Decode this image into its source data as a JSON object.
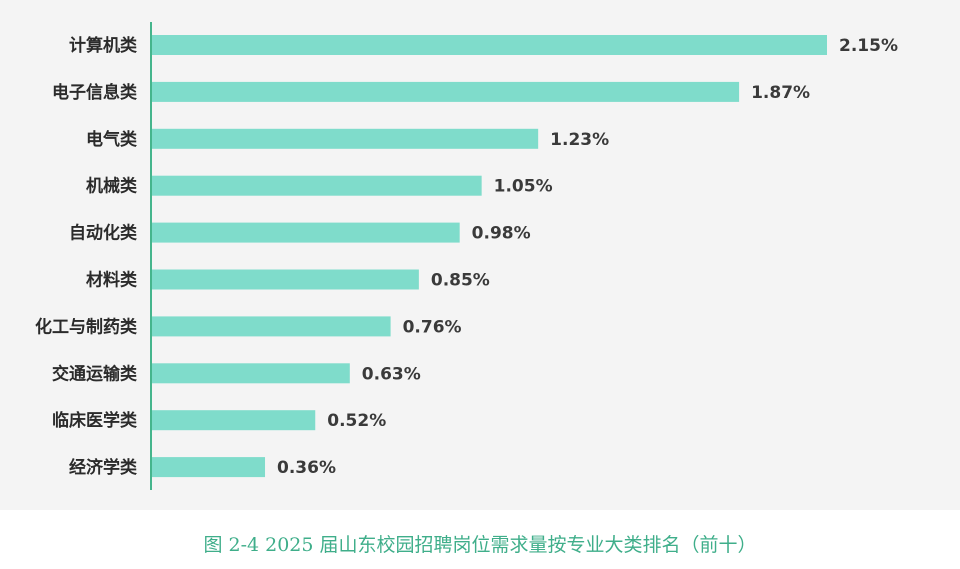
{
  "caption": "图 2-4 2025 届山东校园招聘岗位需求量按专业大类排名（前十）",
  "colors": {
    "bar": "#7fdccb",
    "axis": "#45b58c",
    "panel": "#f4f4f4",
    "caption": "#3fae8a"
  },
  "chart_data": {
    "type": "bar",
    "orientation": "horizontal",
    "categories": [
      "计算机类",
      "电子信息类",
      "电气类",
      "机械类",
      "自动化类",
      "材料类",
      "化工与制药类",
      "交通运输类",
      "临床医学类",
      "经济学类"
    ],
    "values": [
      2.15,
      1.87,
      1.23,
      1.05,
      0.98,
      0.85,
      0.76,
      0.63,
      0.52,
      0.36
    ],
    "value_labels": [
      "2.15%",
      "1.87%",
      "1.23%",
      "1.05%",
      "0.98%",
      "0.85%",
      "0.76%",
      "0.63%",
      "0.52%",
      "0.36%"
    ],
    "xlim": [
      0,
      2.15
    ],
    "grid": false,
    "legend": "none"
  }
}
